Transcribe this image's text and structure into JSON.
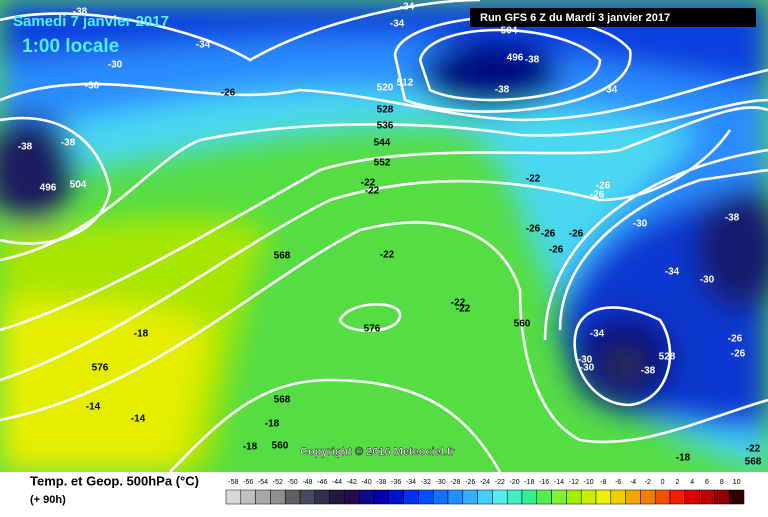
{
  "header": {
    "title": "Samedi 7 janvier 2017",
    "time": "1:00 locale",
    "run": "Run GFS 6 Z du Mardi 3 janvier 2017"
  },
  "copyright": "Copyright © 2016 Meteociel.fr",
  "footer": {
    "parameter": "Temp. et Geop. 500hPa (°C)",
    "lead": "(+ 90h)"
  },
  "contour_labels": [
    -38,
    -34,
    -34,
    -30,
    -30,
    -34,
    504,
    496,
    -38,
    -38,
    -34,
    512,
    520,
    528,
    536,
    544,
    552,
    -26,
    -38,
    -38,
    496,
    504,
    -22,
    -22,
    -22,
    -26,
    -26,
    -30,
    -38,
    -26,
    -26,
    -26,
    -26,
    568,
    -22,
    -34,
    -30,
    -22,
    -22,
    576,
    560,
    -34,
    -18,
    576,
    -30,
    -30,
    528,
    -38,
    -26,
    -26,
    -14,
    -14,
    568,
    -18,
    -18,
    560,
    -18,
    -22,
    568
  ],
  "colorbar": {
    "ticks": [
      -58,
      -56,
      -54,
      -52,
      -50,
      -48,
      -46,
      -44,
      -42,
      -40,
      -38,
      -36,
      -34,
      -32,
      -30,
      -28,
      -26,
      -24,
      -22,
      -20,
      -18,
      -16,
      -14,
      -12,
      -10,
      -8,
      -6,
      -4,
      -2,
      0,
      2,
      4,
      6,
      8,
      10
    ],
    "colors": [
      "#d8d8d8",
      "#c0c0c0",
      "#a8a8a8",
      "#909090",
      "#606060",
      "#484860",
      "#30304c",
      "#201a40",
      "#280a50",
      "#0a0a8a",
      "#0000b0",
      "#0010d0",
      "#0030f0",
      "#0050ff",
      "#1070ff",
      "#2090ff",
      "#30b0ff",
      "#40d0ff",
      "#50f0f0",
      "#40f0c0",
      "#30f090",
      "#50f050",
      "#80f030",
      "#a0f000",
      "#c8f000",
      "#f0f000",
      "#f0d000",
      "#f0a800",
      "#f08000",
      "#f05000",
      "#f02000",
      "#e00000",
      "#c00000",
      "#900000",
      "#300000"
    ]
  }
}
